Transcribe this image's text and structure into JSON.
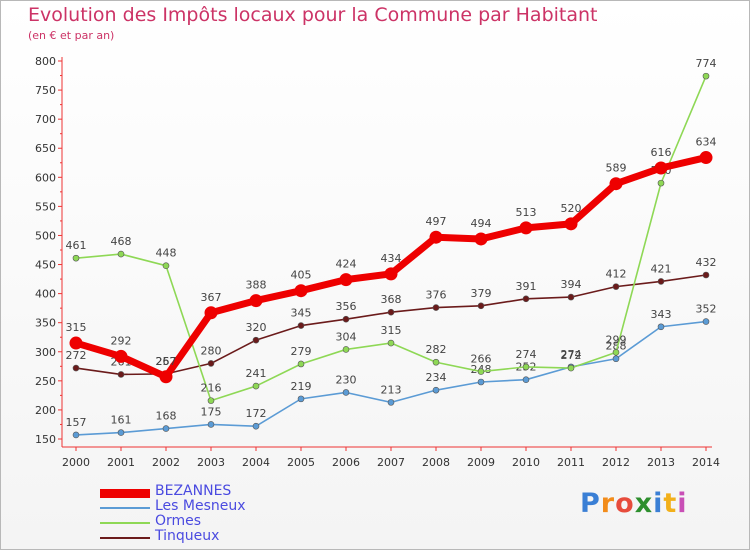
{
  "chart_data": {
    "type": "line",
    "title": "Evolution des Impôts locaux pour la Commune par Habitant",
    "subtitle": "(en € et par an)",
    "categories": [
      "2000",
      "2001",
      "2002",
      "2003",
      "2004",
      "2005",
      "2006",
      "2007",
      "2008",
      "2009",
      "2010",
      "2011",
      "2012",
      "2013",
      "2014"
    ],
    "ylim": [
      150,
      800
    ],
    "yticks": [
      150,
      200,
      250,
      300,
      350,
      400,
      450,
      500,
      550,
      600,
      650,
      700,
      750,
      800
    ],
    "grid": false,
    "legend_position": "bottom-left",
    "series": [
      {
        "name": "Tinqueux",
        "color": "#6b1b1b",
        "values": [
          272,
          261,
          262,
          280,
          320,
          345,
          356,
          368,
          376,
          379,
          391,
          394,
          412,
          421,
          432
        ],
        "labels": [
          "272",
          "261",
          "262",
          "280",
          "320",
          "345",
          "356",
          "368",
          "376",
          "379",
          "391",
          "394",
          "412",
          "421",
          "432"
        ]
      },
      {
        "name": "Les Mesneux",
        "color": "#5b9bd5",
        "values": [
          157,
          161,
          168,
          175,
          172,
          219,
          230,
          213,
          234,
          248,
          252,
          274,
          288,
          343,
          352
        ],
        "labels": [
          "157",
          "161",
          "168",
          "175",
          "172",
          "219",
          "230",
          "213",
          "234",
          "248",
          "252",
          "274",
          "288",
          "343",
          "352"
        ]
      },
      {
        "name": "Ormes",
        "color": "#8ed855",
        "values": [
          461,
          468,
          448,
          216,
          241,
          279,
          304,
          315,
          282,
          266,
          274,
          272,
          299,
          590,
          774
        ],
        "labels": [
          "461",
          "468",
          "448",
          "216",
          "241",
          "279",
          "304",
          "315",
          "282",
          "266",
          "274",
          "272",
          "299",
          "590",
          "774"
        ]
      },
      {
        "name": "BEZANNES",
        "color": "#ee0000",
        "values": [
          315,
          292,
          257,
          367,
          388,
          405,
          424,
          434,
          497,
          494,
          513,
          520,
          589,
          616,
          634
        ],
        "labels": [
          "315",
          "292",
          "257",
          "367",
          "388",
          "405",
          "424",
          "434",
          "497",
          "494",
          "513",
          "520",
          "589",
          "616",
          "634"
        ]
      }
    ]
  },
  "legend": {
    "items": [
      {
        "name": "BEZANNES",
        "color": "#ee0000"
      },
      {
        "name": "Les Mesneux",
        "color": "#5b9bd5"
      },
      {
        "name": "Ormes",
        "color": "#8ed855"
      },
      {
        "name": "Tinqueux",
        "color": "#6b1b1b"
      }
    ]
  },
  "brand": {
    "letters": [
      "P",
      "r",
      "o",
      "x",
      "i",
      "t",
      "i"
    ],
    "colors": [
      "#3a7fd5",
      "#f28c1a",
      "#e74c3c",
      "#2d8f2d",
      "#3a7fd5",
      "#f2b01a",
      "#c94fb6"
    ]
  }
}
